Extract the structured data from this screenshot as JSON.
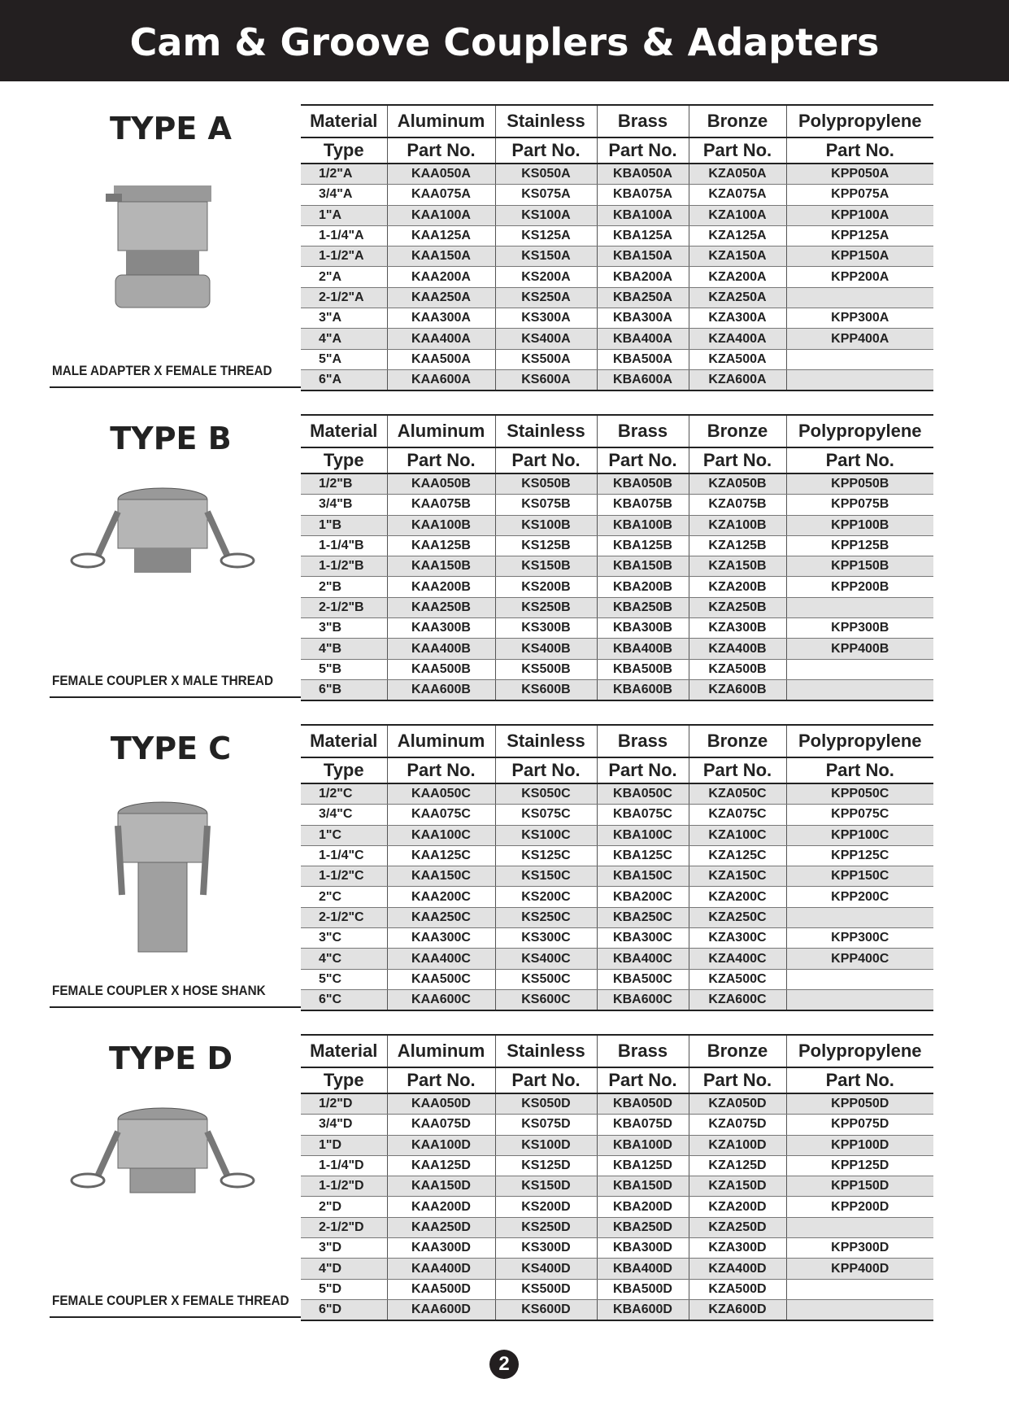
{
  "header": {
    "title": "Cam & Groove Couplers & Adapters"
  },
  "sections": [
    {
      "type_label": "TYPE A",
      "caption": "MALE ADAPTER X FEMALE THREAD",
      "table": {
        "header": [
          [
            "Material",
            "Aluminum",
            "Stainless",
            "Brass",
            "Bronze",
            "Polypropylene"
          ],
          [
            "Type",
            "Part No.",
            "Part No.",
            "Part No.",
            "Part No.",
            "Part No."
          ]
        ],
        "rows": [
          [
            "1/2\"A",
            "KAA050A",
            "KS050A",
            "KBA050A",
            "KZA050A",
            "KPP050A"
          ],
          [
            "3/4\"A",
            "KAA075A",
            "KS075A",
            "KBA075A",
            "KZA075A",
            "KPP075A"
          ],
          [
            "1\"A",
            "KAA100A",
            "KS100A",
            "KBA100A",
            "KZA100A",
            "KPP100A"
          ],
          [
            "1-1/4\"A",
            "KAA125A",
            "KS125A",
            "KBA125A",
            "KZA125A",
            "KPP125A"
          ],
          [
            "1-1/2\"A",
            "KAA150A",
            "KS150A",
            "KBA150A",
            "KZA150A",
            "KPP150A"
          ],
          [
            "2\"A",
            "KAA200A",
            "KS200A",
            "KBA200A",
            "KZA200A",
            "KPP200A"
          ],
          [
            "2-1/2\"A",
            "KAA250A",
            "KS250A",
            "KBA250A",
            "KZA250A",
            null
          ],
          [
            "3\"A",
            "KAA300A",
            "KS300A",
            "KBA300A",
            "KZA300A",
            "KPP300A"
          ],
          [
            "4\"A",
            "KAA400A",
            "KS400A",
            "KBA400A",
            "KZA400A",
            "KPP400A"
          ],
          [
            "5\"A",
            "KAA500A",
            "KS500A",
            "KBA500A",
            "KZA500A",
            null
          ],
          [
            "6\"A",
            "KAA600A",
            "KS600A",
            "KBA600A",
            "KZA600A",
            null
          ]
        ]
      }
    },
    {
      "type_label": "TYPE B",
      "caption": "FEMALE COUPLER X MALE THREAD",
      "table": {
        "header": [
          [
            "Material",
            "Aluminum",
            "Stainless",
            "Brass",
            "Bronze",
            "Polypropylene"
          ],
          [
            "Type",
            "Part No.",
            "Part No.",
            "Part No.",
            "Part No.",
            "Part No."
          ]
        ],
        "rows": [
          [
            "1/2\"B",
            "KAA050B",
            "KS050B",
            "KBA050B",
            "KZA050B",
            "KPP050B"
          ],
          [
            "3/4\"B",
            "KAA075B",
            "KS075B",
            "KBA075B",
            "KZA075B",
            "KPP075B"
          ],
          [
            "1\"B",
            "KAA100B",
            "KS100B",
            "KBA100B",
            "KZA100B",
            "KPP100B"
          ],
          [
            "1-1/4\"B",
            "KAA125B",
            "KS125B",
            "KBA125B",
            "KZA125B",
            "KPP125B"
          ],
          [
            "1-1/2\"B",
            "KAA150B",
            "KS150B",
            "KBA150B",
            "KZA150B",
            "KPP150B"
          ],
          [
            "2\"B",
            "KAA200B",
            "KS200B",
            "KBA200B",
            "KZA200B",
            "KPP200B"
          ],
          [
            "2-1/2\"B",
            "KAA250B",
            "KS250B",
            "KBA250B",
            "KZA250B",
            null
          ],
          [
            "3\"B",
            "KAA300B",
            "KS300B",
            "KBA300B",
            "KZA300B",
            "KPP300B"
          ],
          [
            "4\"B",
            "KAA400B",
            "KS400B",
            "KBA400B",
            "KZA400B",
            "KPP400B"
          ],
          [
            "5\"B",
            "KAA500B",
            "KS500B",
            "KBA500B",
            "KZA500B",
            null
          ],
          [
            "6\"B",
            "KAA600B",
            "KS600B",
            "KBA600B",
            "KZA600B",
            null
          ]
        ]
      }
    },
    {
      "type_label": "TYPE C",
      "caption": "FEMALE COUPLER X HOSE SHANK",
      "table": {
        "header": [
          [
            "Material",
            "Aluminum",
            "Stainless",
            "Brass",
            "Bronze",
            "Polypropylene"
          ],
          [
            "Type",
            "Part No.",
            "Part No.",
            "Part No.",
            "Part No.",
            "Part No."
          ]
        ],
        "rows": [
          [
            "1/2\"C",
            "KAA050C",
            "KS050C",
            "KBA050C",
            "KZA050C",
            "KPP050C"
          ],
          [
            "3/4\"C",
            "KAA075C",
            "KS075C",
            "KBA075C",
            "KZA075C",
            "KPP075C"
          ],
          [
            "1\"C",
            "KAA100C",
            "KS100C",
            "KBA100C",
            "KZA100C",
            "KPP100C"
          ],
          [
            "1-1/4\"C",
            "KAA125C",
            "KS125C",
            "KBA125C",
            "KZA125C",
            "KPP125C"
          ],
          [
            "1-1/2\"C",
            "KAA150C",
            "KS150C",
            "KBA150C",
            "KZA150C",
            "KPP150C"
          ],
          [
            "2\"C",
            "KAA200C",
            "KS200C",
            "KBA200C",
            "KZA200C",
            "KPP200C"
          ],
          [
            "2-1/2\"C",
            "KAA250C",
            "KS250C",
            "KBA250C",
            "KZA250C",
            null
          ],
          [
            "3\"C",
            "KAA300C",
            "KS300C",
            "KBA300C",
            "KZA300C",
            "KPP300C"
          ],
          [
            "4\"C",
            "KAA400C",
            "KS400C",
            "KBA400C",
            "KZA400C",
            "KPP400C"
          ],
          [
            "5\"C",
            "KAA500C",
            "KS500C",
            "KBA500C",
            "KZA500C",
            null
          ],
          [
            "6\"C",
            "KAA600C",
            "KS600C",
            "KBA600C",
            "KZA600C",
            null
          ]
        ]
      }
    },
    {
      "type_label": "TYPE D",
      "caption": "FEMALE COUPLER X FEMALE THREAD",
      "table": {
        "header": [
          [
            "Material",
            "Aluminum",
            "Stainless",
            "Brass",
            "Bronze",
            "Polypropylene"
          ],
          [
            "Type",
            "Part No.",
            "Part No.",
            "Part No.",
            "Part No.",
            "Part No."
          ]
        ],
        "rows": [
          [
            "1/2\"D",
            "KAA050D",
            "KS050D",
            "KBA050D",
            "KZA050D",
            "KPP050D"
          ],
          [
            "3/4\"D",
            "KAA075D",
            "KS075D",
            "KBA075D",
            "KZA075D",
            "KPP075D"
          ],
          [
            "1\"D",
            "KAA100D",
            "KS100D",
            "KBA100D",
            "KZA100D",
            "KPP100D"
          ],
          [
            "1-1/4\"D",
            "KAA125D",
            "KS125D",
            "KBA125D",
            "KZA125D",
            "KPP125D"
          ],
          [
            "1-1/2\"D",
            "KAA150D",
            "KS150D",
            "KBA150D",
            "KZA150D",
            "KPP150D"
          ],
          [
            "2\"D",
            "KAA200D",
            "KS200D",
            "KBA200D",
            "KZA200D",
            "KPP200D"
          ],
          [
            "2-1/2\"D",
            "KAA250D",
            "KS250D",
            "KBA250D",
            "KZA250D",
            null
          ],
          [
            "3\"D",
            "KAA300D",
            "KS300D",
            "KBA300D",
            "KZA300D",
            "KPP300D"
          ],
          [
            "4\"D",
            "KAA400D",
            "KS400D",
            "KBA400D",
            "KZA400D",
            "KPP400D"
          ],
          [
            "5\"D",
            "KAA500D",
            "KS500D",
            "KBA500D",
            "KZA500D",
            null
          ],
          [
            "6\"D",
            "KAA600D",
            "KS600D",
            "KBA600D",
            "KZA600D",
            null
          ]
        ]
      }
    }
  ],
  "page_number": "2"
}
